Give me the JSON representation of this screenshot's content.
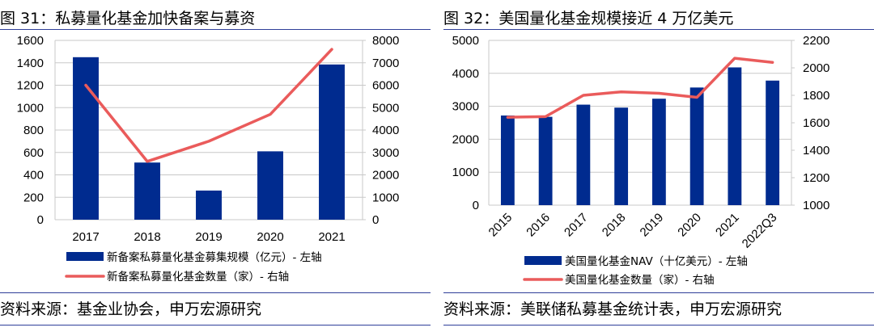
{
  "left": {
    "title": "图 31：私募量化基金加快备案与募资",
    "source": "资料来源：基金业协会，申万宏源研究",
    "chart_data": {
      "type": "bar",
      "categories": [
        "2017",
        "2018",
        "2019",
        "2020",
        "2021"
      ],
      "series": [
        {
          "name": "新备案私募量化基金募集规模（亿元）- 左轴",
          "type": "bar",
          "axis": "left",
          "color": "#002b8f",
          "values": [
            1450,
            510,
            260,
            610,
            1385
          ]
        },
        {
          "name": "新备案私募量化基金数量（家）- 右轴",
          "type": "line",
          "axis": "right",
          "color": "#ea5b5b",
          "values": [
            6000,
            2600,
            3500,
            4700,
            7600
          ]
        }
      ],
      "yleft": {
        "min": 0,
        "max": 1600,
        "ticks": [
          "0",
          "200",
          "400",
          "600",
          "800",
          "1000",
          "1200",
          "1400",
          "1600"
        ]
      },
      "yright": {
        "min": 0,
        "max": 8000,
        "ticks": [
          "0",
          "1000",
          "2000",
          "3000",
          "4000",
          "5000",
          "6000",
          "7000",
          "8000"
        ]
      },
      "grid": true,
      "legend": "bottom"
    }
  },
  "right": {
    "title": "图 32：美国量化基金规模接近 4 万亿美元",
    "source": "资料来源：美联储私募基金统计表，申万宏源研究",
    "chart_data": {
      "type": "bar",
      "categories": [
        "2015",
        "2016",
        "2017",
        "2018",
        "2019",
        "2020",
        "2021",
        "2022Q3"
      ],
      "series": [
        {
          "name": "美国量化基金NAV（十亿美元）- 左轴",
          "type": "bar",
          "axis": "left",
          "color": "#002b8f",
          "values": [
            2720,
            2680,
            3050,
            2960,
            3230,
            3570,
            4180,
            3780
          ]
        },
        {
          "name": "美国量化基金数量（家）- 右轴",
          "type": "line",
          "axis": "right",
          "color": "#ea5b5b",
          "values": [
            1640,
            1645,
            1800,
            1825,
            1815,
            1785,
            2070,
            2040
          ]
        }
      ],
      "yleft": {
        "min": 0,
        "max": 5000,
        "ticks": [
          "0",
          "1000",
          "2000",
          "3000",
          "4000",
          "5000"
        ]
      },
      "yright": {
        "min": 1000,
        "max": 2200,
        "ticks": [
          "1000",
          "1200",
          "1400",
          "1600",
          "1800",
          "2000",
          "2200"
        ]
      },
      "grid": true,
      "legend": "bottom"
    }
  }
}
